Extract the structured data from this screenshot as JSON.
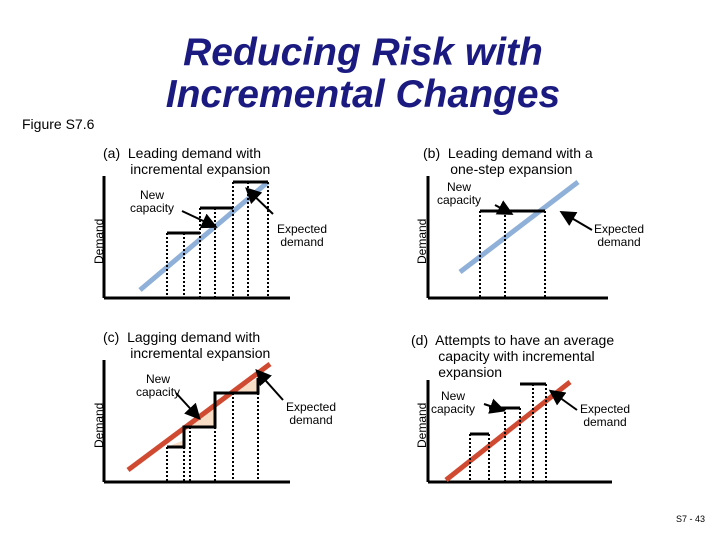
{
  "title": "Reducing Risk with Incremental Changes",
  "figure_label": "Figure S7.6",
  "page_number": "S7 - 43",
  "colors": {
    "title": "#1a1a80",
    "demand_blue": "#8fb0d8",
    "demand_red": "#d04a32",
    "shade": "#f7dcc6"
  },
  "panels": [
    {
      "id": "a",
      "caption": "(a)  Leading demand with\n       incremental expansion",
      "axis_label": "Demand",
      "new_capacity": "New\ncapacity",
      "expected_demand": "Expected\ndemand"
    },
    {
      "id": "b",
      "caption": "(b)  Leading demand with a\n       one-step expansion",
      "axis_label": "Demand",
      "new_capacity": "New\ncapacity",
      "expected_demand": "Expected\ndemand"
    },
    {
      "id": "c",
      "caption": "(c)  Lagging demand with\n       incremental expansion",
      "axis_label": "Demand",
      "new_capacity": "New\ncapacity",
      "expected_demand": "Expected\ndemand"
    },
    {
      "id": "d",
      "caption": "(d)  Attempts to have an average\n       capacity with incremental\n       expansion",
      "axis_label": "Demand",
      "new_capacity": "New\ncapacity",
      "expected_demand": "Expected\ndemand"
    }
  ]
}
